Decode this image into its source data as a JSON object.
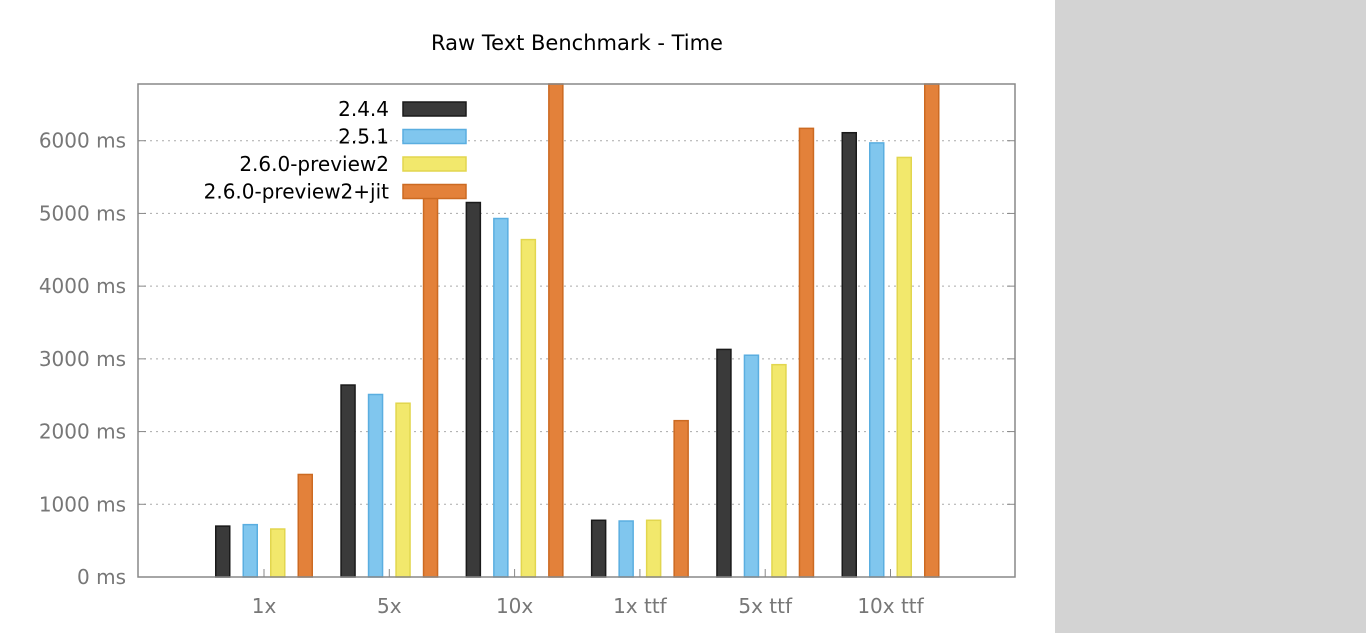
{
  "chart_data": {
    "type": "bar",
    "title": "Raw Text Benchmark - Time",
    "categories": [
      "1x",
      "5x",
      "10x",
      "1x ttf",
      "5x ttf",
      "10x ttf"
    ],
    "yticks": [
      "0 ms",
      "1000 ms",
      "2000 ms",
      "3000 ms",
      "4000 ms",
      "5000 ms",
      "6000 ms"
    ],
    "ylim": [
      0,
      6780
    ],
    "grid": true,
    "legend_position": "top-left",
    "series": [
      {
        "name": "2.4.4",
        "color": "#3a3a3a",
        "stroke": "#1a1a1a",
        "values": [
          700,
          2640,
          5150,
          780,
          3130,
          6110
        ]
      },
      {
        "name": "2.5.1",
        "color": "#80c6ee",
        "stroke": "#5aaee0",
        "values": [
          720,
          2510,
          4930,
          770,
          3050,
          5970
        ]
      },
      {
        "name": "2.6.0-preview2",
        "color": "#f2e86c",
        "stroke": "#e2d64e",
        "values": [
          660,
          2390,
          4640,
          780,
          2920,
          5770
        ]
      },
      {
        "name": "2.6.0-preview2+jit",
        "color": "#e3813a",
        "stroke": "#cc6a22",
        "values": [
          1410,
          5390,
          6780,
          2150,
          6170,
          6780
        ]
      }
    ]
  }
}
